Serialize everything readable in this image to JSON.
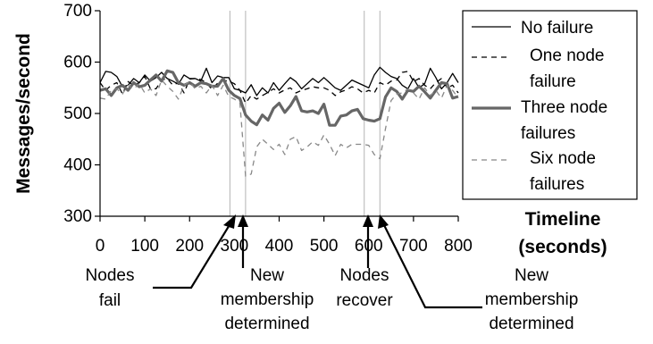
{
  "chart_data": {
    "type": "line",
    "xlabel": [
      "Timeline",
      "(seconds)"
    ],
    "ylabel": "Messages/second",
    "xlim": [
      0,
      800
    ],
    "ylim": [
      300,
      700
    ],
    "xticks": [
      0,
      100,
      200,
      300,
      400,
      500,
      600,
      700,
      800
    ],
    "yticks": [
      300,
      400,
      500,
      600,
      700
    ],
    "grid": false,
    "legend_position": "right",
    "event_lines_x": [
      290,
      325,
      590,
      625
    ],
    "x": [
      0,
      12.5,
      25,
      37.5,
      50,
      62.5,
      75,
      87.5,
      100,
      112.5,
      125,
      137.5,
      150,
      162.5,
      175,
      187.5,
      200,
      212.5,
      225,
      237.5,
      250,
      262.5,
      275,
      287.5,
      300,
      312.5,
      325,
      337.5,
      350,
      362.5,
      375,
      387.5,
      400,
      412.5,
      425,
      437.5,
      450,
      462.5,
      475,
      487.5,
      500,
      512.5,
      525,
      537.5,
      550,
      562.5,
      575,
      587.5,
      600,
      612.5,
      625,
      637.5,
      650,
      662.5,
      675,
      687.5,
      700,
      712.5,
      725,
      737.5,
      750,
      762.5,
      775,
      787.5,
      800
    ],
    "series": [
      {
        "name": "No failure",
        "style": "solid-thin",
        "values": [
          560,
          582,
          580,
          572,
          552,
          555,
          568,
          560,
          575,
          563,
          570,
          580,
          568,
          563,
          557,
          575,
          568,
          568,
          563,
          588,
          560,
          573,
          570,
          570,
          548,
          545,
          540,
          556,
          535,
          550,
          540,
          560,
          545,
          558,
          570,
          562,
          548,
          558,
          568,
          560,
          570,
          560,
          550,
          545,
          555,
          565,
          560,
          555,
          550,
          575,
          590,
          580,
          572,
          568,
          555,
          548,
          568,
          550,
          558,
          588,
          570,
          548,
          560,
          578,
          560
        ]
      },
      {
        "name": "One node failure",
        "style": "dashed-thin",
        "values": [
          560,
          545,
          555,
          560,
          538,
          562,
          555,
          560,
          572,
          548,
          548,
          565,
          568,
          555,
          560,
          540,
          567,
          568,
          566,
          560,
          547,
          559,
          564,
          563,
          558,
          545,
          520,
          535,
          528,
          535,
          541,
          548,
          540,
          546,
          550,
          540,
          545,
          548,
          552,
          550,
          550,
          545,
          535,
          542,
          546,
          552,
          548,
          540,
          545,
          540,
          560,
          555,
          563,
          565,
          580,
          582,
          562,
          568,
          555,
          548,
          560,
          568,
          550,
          555,
          540
        ]
      },
      {
        "name": "Three node failures",
        "style": "solid-thick",
        "values": [
          545,
          548,
          535,
          550,
          555,
          545,
          560,
          552,
          555,
          565,
          575,
          563,
          583,
          580,
          560,
          555,
          560,
          553,
          560,
          558,
          553,
          553,
          568,
          545,
          535,
          529,
          497,
          485,
          478,
          497,
          487,
          510,
          520,
          502,
          515,
          533,
          505,
          503,
          505,
          500,
          518,
          477,
          477,
          495,
          497,
          505,
          508,
          490,
          487,
          485,
          490,
          532,
          550,
          543,
          528,
          545,
          543,
          553,
          542,
          530,
          545,
          560,
          558,
          530,
          533
        ]
      },
      {
        "name": "Six node failures",
        "style": "dashed-gray",
        "values": [
          530,
          528,
          545,
          548,
          538,
          555,
          548,
          558,
          540,
          548,
          535,
          565,
          553,
          543,
          528,
          555,
          562,
          548,
          553,
          540,
          555,
          535,
          555,
          533,
          528,
          520,
          378,
          382,
          435,
          450,
          440,
          430,
          440,
          420,
          450,
          455,
          428,
          435,
          445,
          438,
          458,
          440,
          418,
          440,
          433,
          440,
          440,
          440,
          438,
          420,
          412,
          470,
          525,
          538,
          540,
          548,
          540,
          528,
          550,
          535,
          545,
          530,
          555,
          545,
          530
        ]
      }
    ],
    "annotations": [
      {
        "lines": [
          "Nodes",
          "fail"
        ],
        "x_target": 290
      },
      {
        "lines": [
          "New",
          "membership",
          "determined"
        ],
        "x_target": 325
      },
      {
        "lines": [
          "Nodes",
          "recover"
        ],
        "x_target": 590
      },
      {
        "lines": [
          "New",
          "membership",
          "determined"
        ],
        "x_target": 625
      }
    ]
  }
}
